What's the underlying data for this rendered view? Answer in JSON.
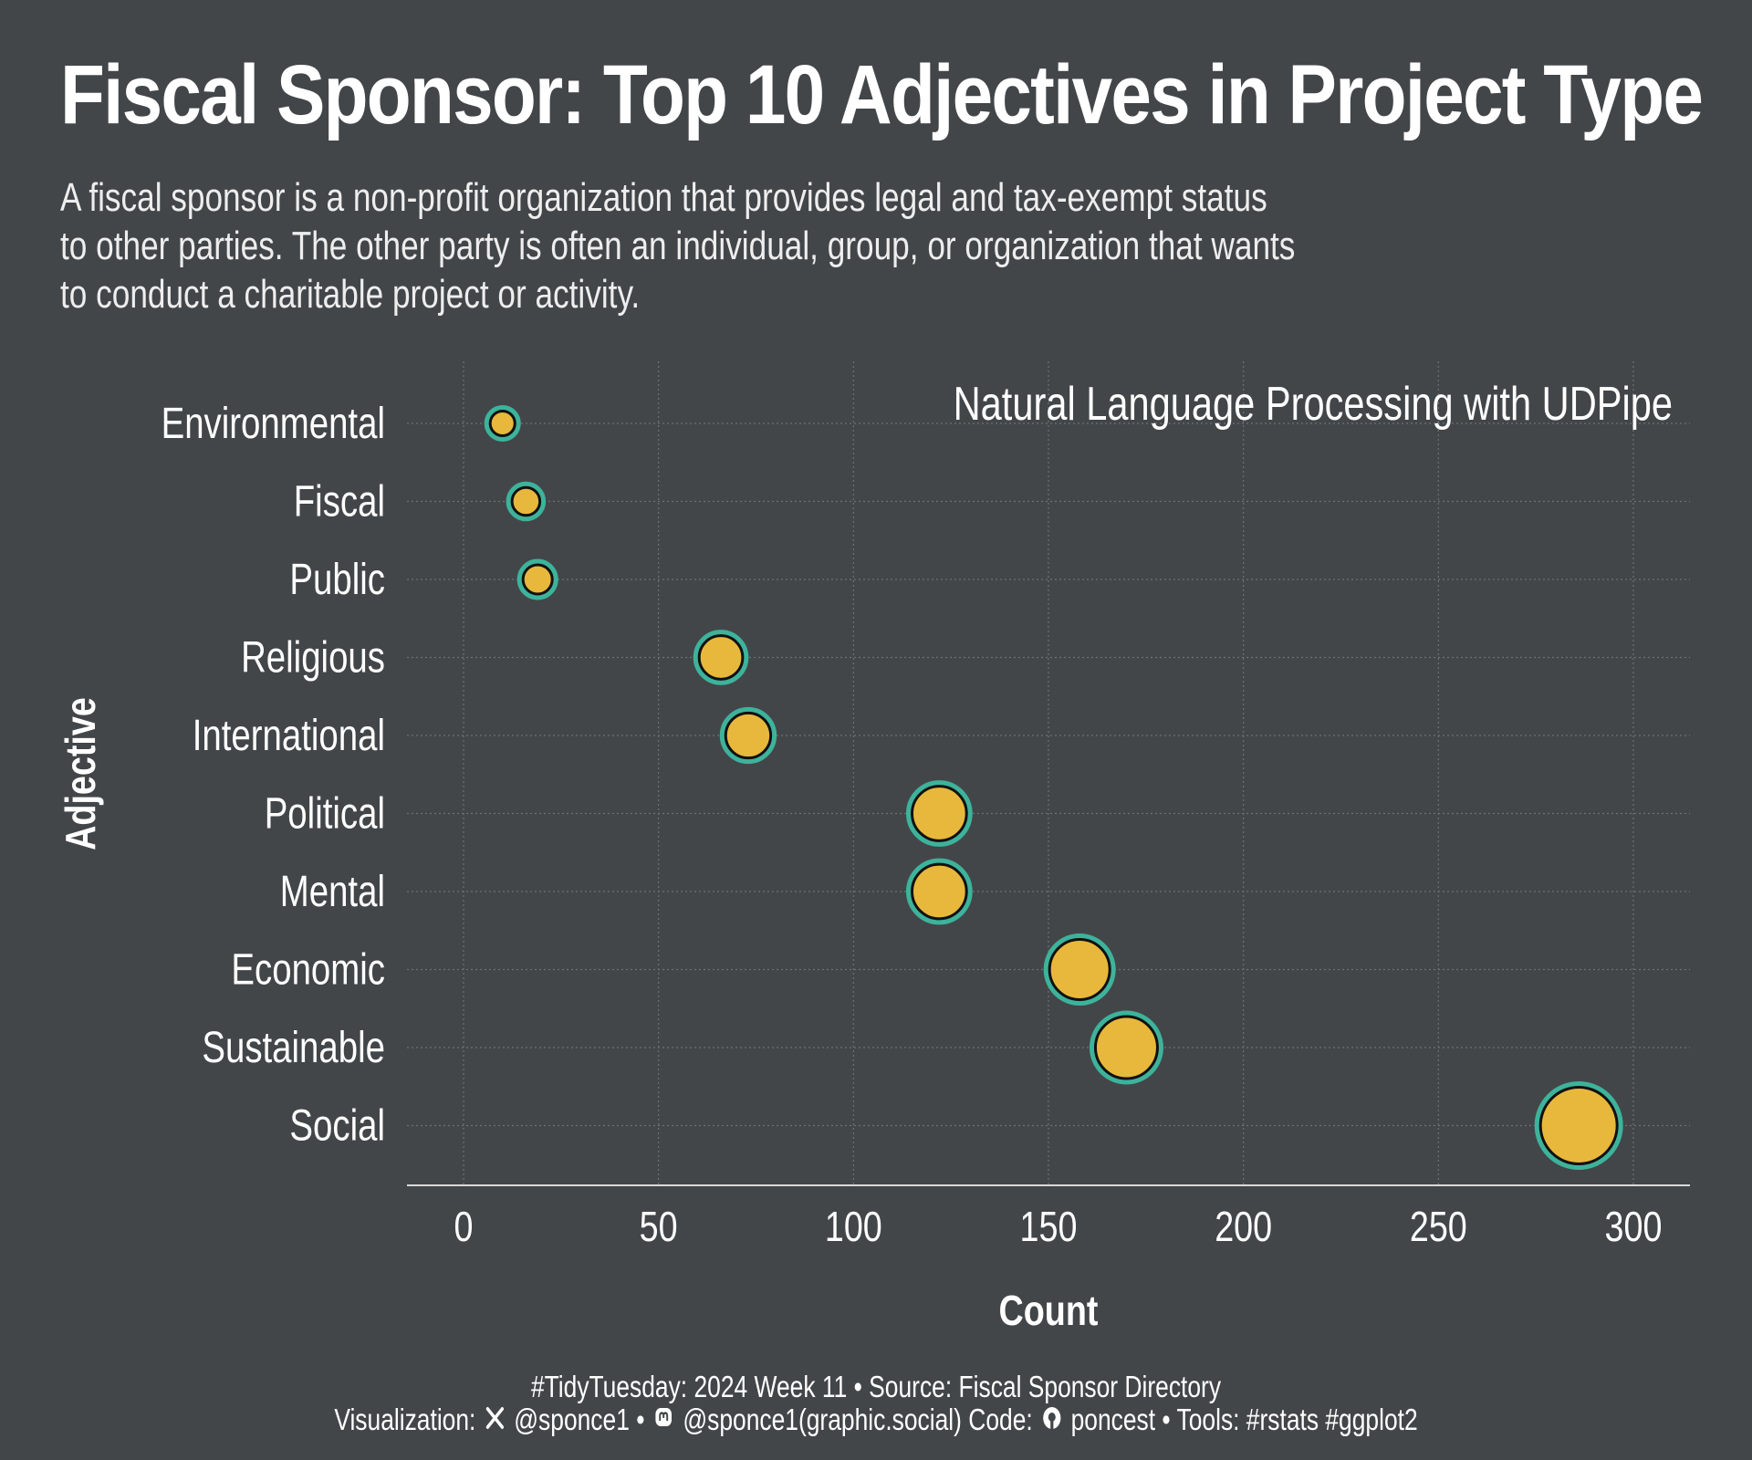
{
  "title": "Fiscal Sponsor: Top 10 Adjectives in Project Type",
  "subtitle_lines": [
    "A fiscal sponsor is a non-profit organization that provides legal and tax-exempt status",
    "to other parties. The other party is often an individual, group, or organization that wants",
    "to conduct a charitable project or activity."
  ],
  "chart_data": {
    "type": "scatter",
    "annotation": "Natural Language Processing with UDPipe",
    "xlabel": "Count",
    "ylabel": "Adjective",
    "xlim": [
      -15,
      315
    ],
    "xticks": [
      0,
      50,
      100,
      150,
      200,
      250,
      300
    ],
    "grid": true,
    "legend": "none",
    "categories": [
      "Environmental",
      "Fiscal",
      "Public",
      "Religious",
      "International",
      "Political",
      "Mental",
      "Economic",
      "Sustainable",
      "Social"
    ],
    "values": [
      10,
      16,
      19,
      66,
      73,
      122,
      122,
      158,
      170,
      286
    ],
    "point_color": "#e8b83c",
    "ring_color": "#3db39b"
  },
  "caption": {
    "line1": "#TidyTuesday: 2024 Week 11 • Source: Fiscal Sponsor Directory",
    "line2_a": "Visualization:",
    "x_icon": "x-logo-icon",
    "line2_b": "@sponce1 •",
    "mastodon_icon": "mastodon-icon",
    "line2_c": "@sponce1(graphic.social) Code:",
    "github_icon": "github-icon",
    "line2_d": "poncest • Tools: #rstats #ggplot2"
  }
}
